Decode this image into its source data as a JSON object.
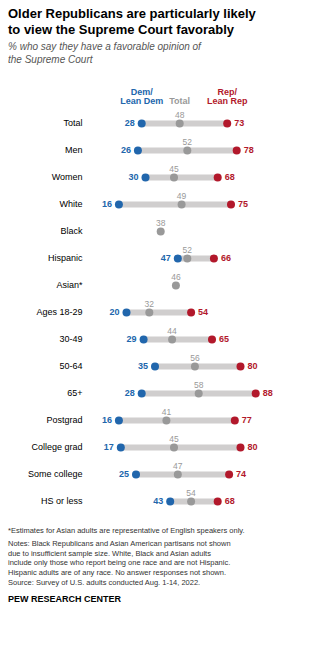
{
  "chart_data": {
    "type": "dot",
    "orientation": "horizontal",
    "title": "Older Republicans are particularly likely\nto view the Supreme Court favorably",
    "subtitle": "% who say they have a favorable opinion of\nthe Supreme Court",
    "categories": [
      "Total",
      "Men",
      "Women",
      "White",
      "Black",
      "Hispanic",
      "Asian*",
      "Ages 18-29",
      "30-49",
      "50-64",
      "65+",
      "Postgrad",
      "College grad",
      "Some college",
      "HS or less"
    ],
    "series": [
      {
        "name": "Dem/\nLean Dem",
        "color": "#2166ac",
        "values": [
          28,
          26,
          30,
          16,
          null,
          47,
          null,
          20,
          29,
          35,
          28,
          16,
          17,
          25,
          43
        ]
      },
      {
        "name": "Total",
        "color": "#999999",
        "values": [
          48,
          52,
          45,
          49,
          38,
          52,
          46,
          32,
          44,
          56,
          58,
          41,
          45,
          47,
          54
        ]
      },
      {
        "name": "Rep/\nLean Rep",
        "color": "#b2182b",
        "values": [
          73,
          78,
          68,
          75,
          null,
          66,
          null,
          54,
          65,
          80,
          88,
          77,
          80,
          74,
          68
        ]
      }
    ],
    "color": "#d0cece",
    "xlim": [
      0,
      100
    ],
    "tick_labels": "y",
    "data_labels": true,
    "notes": [
      "*Estimates for Asian adults are representative of English speakers only.",
      "Notes: Black Republicans and Asian American partisans not shown\ndue to insufficient sample size. White, Black and Asian adults\ninclude only those who report being one race and are not Hispanic.\nHispanic adults are of any race. No answer responses not shown.\nSource: Survey of U.S. adults conducted Aug. 1-14, 2022."
    ],
    "footer": "PEW RESEARCH CENTER"
  }
}
